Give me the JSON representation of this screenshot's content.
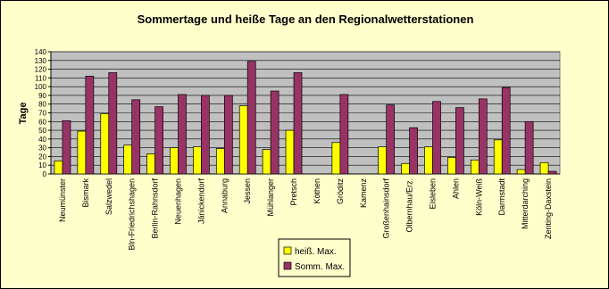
{
  "chart_data": {
    "type": "bar",
    "title": "Sommertage und heiße Tage an den Regionalwetterstationen",
    "y_label": "Tage",
    "categories": [
      "Neumünster",
      "Bismark",
      "Salzwedel",
      "Bln-Friedrichshagen",
      "Berlin-Rahnsdorf",
      "Neuenhagen",
      "Jänickendorf",
      "Annaburg",
      "Jessen",
      "Mühlanger",
      "Pretsch",
      "Köthen",
      "Gröditz",
      "Kamenz",
      "Großenhainsdorf",
      "Olbernhau/Erz.",
      "Eisleben",
      "Ahlen",
      "Köln-Weiß",
      "Darmstadt",
      "Mitterdarching",
      "Zenting-Daxstein"
    ],
    "series": [
      {
        "name": "heiß. Max.",
        "color": "#ffff00",
        "values": [
          15,
          49,
          69,
          33,
          23,
          30,
          31,
          29,
          78,
          28,
          50,
          null,
          36,
          null,
          31,
          12,
          31,
          19,
          16,
          39,
          5,
          13
        ]
      },
      {
        "name": "Somm. Max.",
        "color": "#993366",
        "values": [
          61,
          112,
          116,
          85,
          77,
          91,
          90,
          90,
          129,
          95,
          116,
          null,
          91,
          null,
          79,
          53,
          83,
          76,
          86,
          99,
          60,
          3
        ]
      }
    ],
    "ylim": [
      0,
      140
    ],
    "yticks": [
      0,
      10,
      20,
      30,
      40,
      50,
      60,
      70,
      80,
      90,
      100,
      110,
      120,
      130,
      140
    ],
    "grid": true
  }
}
